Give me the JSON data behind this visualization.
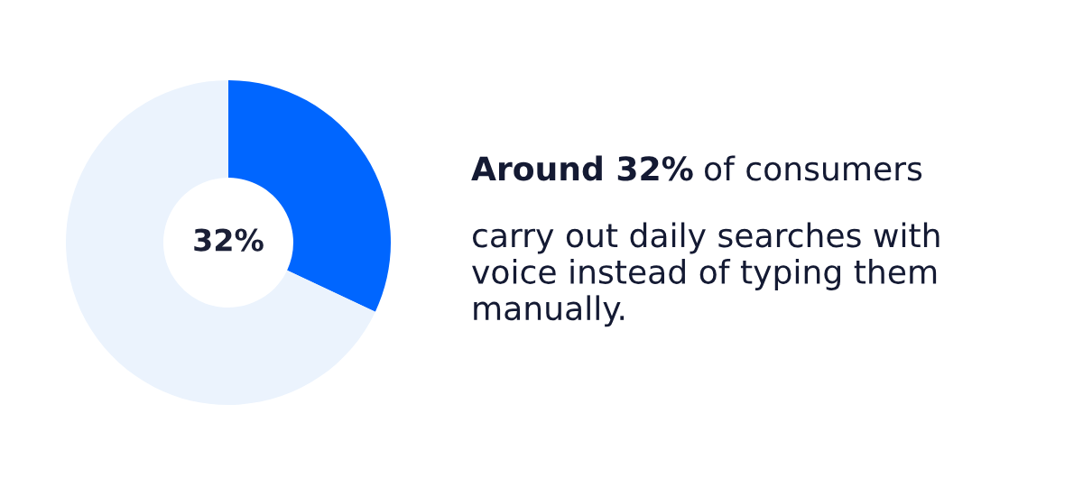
{
  "chart_data": {
    "type": "donut",
    "categories": [
      null,
      null
    ],
    "values": [
      32,
      68
    ],
    "colors": [
      "#0066ff",
      "#ebf3fd"
    ],
    "value_labels": [
      "32%",
      null
    ],
    "annotations": [
      "Around 32%",
      "of consumers\ncarry out daily searches with\nvoice instead of typing them\nmanually."
    ]
  }
}
